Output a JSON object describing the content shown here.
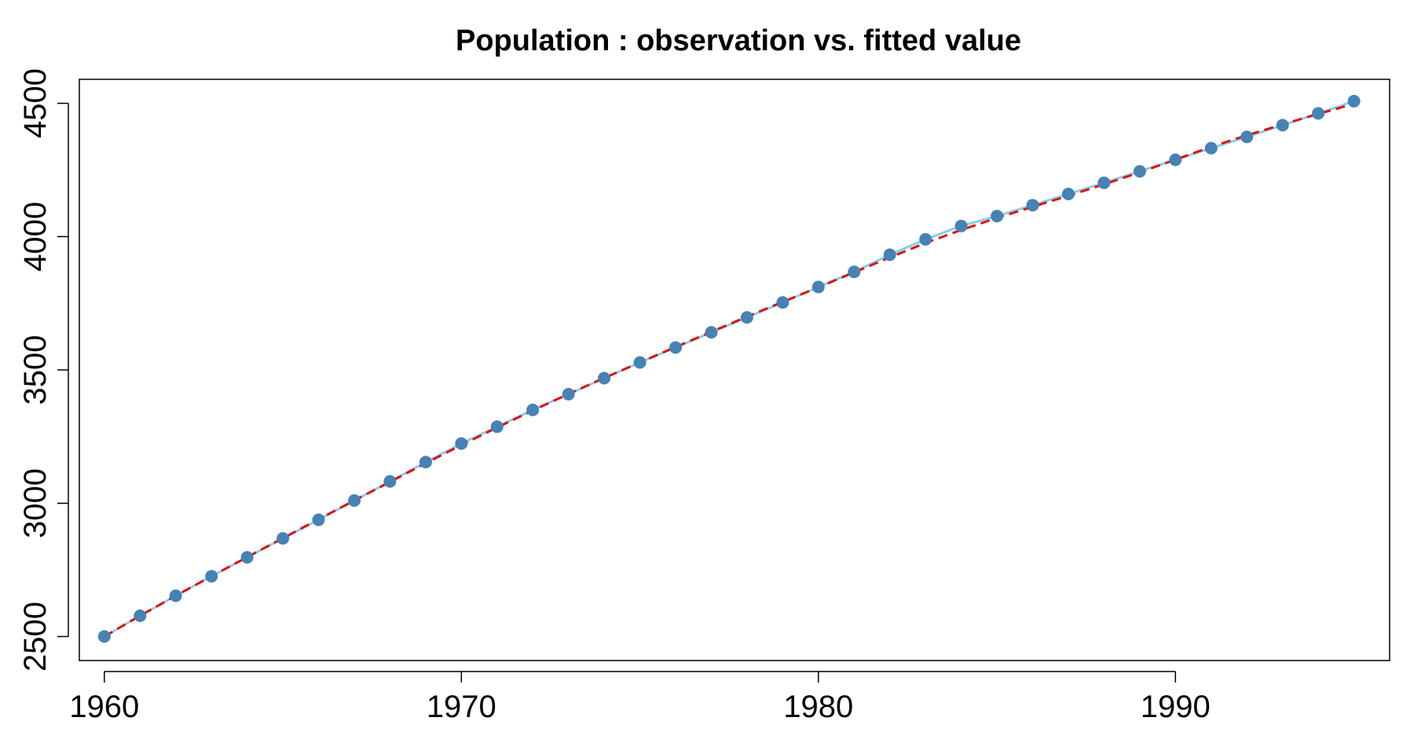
{
  "chart_data": {
    "type": "line",
    "title": "Population : observation vs. fitted value",
    "xlabel": "",
    "ylabel": "",
    "xlim": [
      1959.3,
      1996.0
    ],
    "ylim": [
      2410,
      4590
    ],
    "x_ticks": [
      1960,
      1970,
      1980,
      1990
    ],
    "y_ticks": [
      2500,
      3000,
      3500,
      4000,
      4500
    ],
    "grid": false,
    "legend": "none",
    "x": [
      1960,
      1961,
      1962,
      1963,
      1964,
      1965,
      1966,
      1967,
      1968,
      1969,
      1970,
      1971,
      1972,
      1973,
      1974,
      1975,
      1976,
      1977,
      1978,
      1979,
      1980,
      1981,
      1982,
      1983,
      1984,
      1985,
      1986,
      1987,
      1988,
      1989,
      1990,
      1991,
      1992,
      1993,
      1994,
      1995
    ],
    "series": [
      {
        "role": "observation",
        "style": "points+line",
        "point_color": "#4682b4",
        "line_color": "#87ceeb",
        "values": [
          2500,
          2578,
          2653,
          2726,
          2797,
          2868,
          2938,
          3010,
          3082,
          3154,
          3224,
          3287,
          3350,
          3409,
          3469,
          3528,
          3584,
          3641,
          3697,
          3753,
          3811,
          3868,
          3932,
          3990,
          4040,
          4077,
          4118,
          4160,
          4202,
          4245,
          4288,
          4332,
          4374,
          4418,
          4462,
          4508
        ]
      },
      {
        "role": "fitted",
        "style": "dashed-line",
        "line_color": "#e01010",
        "values": [
          2500,
          2578,
          2653,
          2726,
          2798,
          2869,
          2940,
          3010,
          3080,
          3150,
          3218,
          3284,
          3348,
          3410,
          3470,
          3528,
          3586,
          3643,
          3700,
          3755,
          3810,
          3866,
          3922,
          3976,
          4025,
          4070,
          4112,
          4153,
          4196,
          4241,
          4289,
          4337,
          4380,
          4421,
          4460,
          4498
        ]
      }
    ]
  }
}
